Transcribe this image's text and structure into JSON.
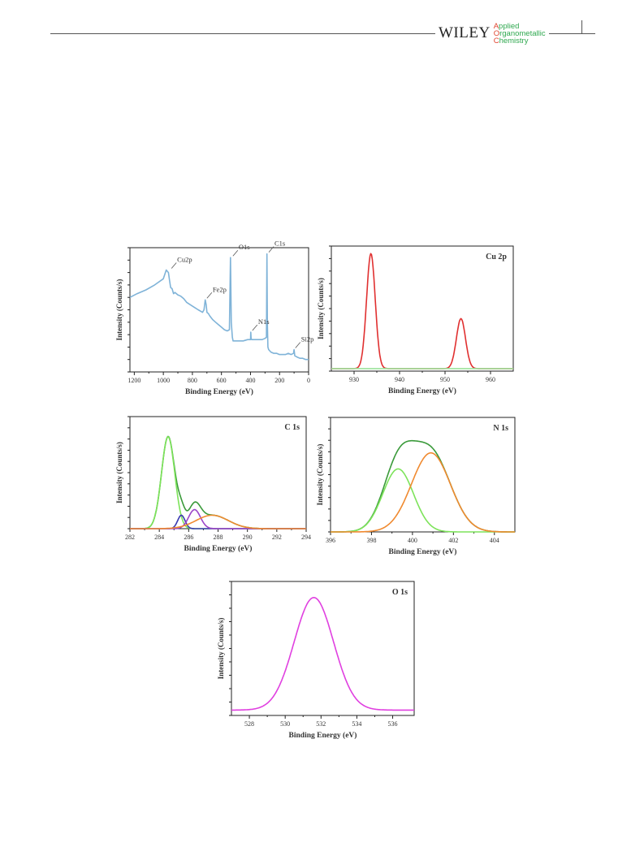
{
  "header": {
    "publisher": "WILEY",
    "journal_lines": [
      {
        "initial": "A",
        "rest": "pplied"
      },
      {
        "initial": "O",
        "rest": "rganometallic"
      },
      {
        "initial": "C",
        "rest": "hemistry"
      }
    ],
    "colors": {
      "journal_text": "#2fa84f",
      "journal_initial": "#e0452f"
    }
  },
  "chart_data": [
    {
      "id": "survey",
      "type": "line",
      "title": "",
      "xlabel": "Binding Energy (eV)",
      "ylabel": "Intensity (Counts/s)",
      "x_reversed": true,
      "xlim": [
        1230,
        0
      ],
      "ylim": [
        0,
        100
      ],
      "xticks": [
        1200,
        1000,
        800,
        600,
        400,
        200,
        0
      ],
      "color": "#7fb3d8",
      "series": [
        {
          "name": "",
          "x": [
            1230,
            1180,
            1120,
            1060,
            1000,
            980,
            965,
            958,
            950,
            940,
            930,
            920,
            900,
            880,
            860,
            840,
            800,
            760,
            730,
            720,
            712,
            705,
            700,
            690,
            680,
            660,
            640,
            620,
            600,
            580,
            560,
            545,
            538,
            532,
            525,
            520,
            500,
            480,
            450,
            420,
            400,
            398,
            396,
            392,
            380,
            350,
            320,
            300,
            290,
            287,
            284,
            280,
            275,
            260,
            240,
            220,
            200,
            180,
            160,
            140,
            120,
            104,
            100,
            95,
            80,
            60,
            40,
            20,
            0
          ],
          "y": [
            60,
            63,
            66,
            70,
            75,
            82,
            80,
            74,
            68,
            67,
            63,
            64,
            62,
            61,
            59,
            56,
            53,
            50,
            48,
            50,
            58,
            54,
            48,
            47,
            45,
            42,
            40,
            38,
            36,
            34,
            33,
            34,
            92,
            40,
            28,
            25,
            25,
            25,
            25,
            26,
            26,
            32,
            27,
            26,
            26,
            26,
            26,
            27,
            28,
            95,
            40,
            20,
            18,
            16,
            15,
            15,
            14,
            14,
            14,
            15,
            14,
            15,
            18,
            13,
            12,
            11,
            11,
            10,
            10
          ]
        }
      ],
      "annotations": [
        {
          "text": "Cu2p",
          "x": 955,
          "y": 82
        },
        {
          "text": "Fe2p",
          "x": 711,
          "y": 58
        },
        {
          "text": "O1s",
          "x": 532,
          "y": 92
        },
        {
          "text": "N1s",
          "x": 398,
          "y": 32
        },
        {
          "text": "C1s",
          "x": 285,
          "y": 95
        },
        {
          "text": "Si2p",
          "x": 102,
          "y": 18
        }
      ]
    },
    {
      "id": "cu2p",
      "type": "line",
      "title": "Cu 2p",
      "xlabel": "Binding Energy (eV)",
      "ylabel": "Intensity (Counts/s)",
      "xlim": [
        925,
        965
      ],
      "ylim": [
        0,
        100
      ],
      "xticks": [
        930,
        940,
        950,
        960
      ],
      "series": [
        {
          "name": "",
          "color": "#e03030",
          "peaks": [
            {
              "center": 933.7,
              "height": 92,
              "width": 0.95
            },
            {
              "center": 953.5,
              "height": 40,
              "width": 1.0
            }
          ],
          "baseline": 2
        },
        {
          "name": "",
          "color": "#9be39b",
          "peaks": [],
          "baseline": 2
        }
      ]
    },
    {
      "id": "c1s",
      "type": "line",
      "title": "C 1s",
      "xlabel": "Binding Energy (eV)",
      "ylabel": "Intensity (Counts/s)",
      "xlim": [
        282,
        294
      ],
      "ylim": [
        0,
        100
      ],
      "xticks": [
        282,
        284,
        286,
        288,
        290,
        292,
        294
      ],
      "series": [
        {
          "name": "",
          "color": "#3a9a3a",
          "peaks": [
            {
              "center": 284.6,
              "height": 82,
              "width": 0.45
            },
            {
              "center": 285.5,
              "height": 12,
              "width": 0.25
            },
            {
              "center": 286.4,
              "height": 17,
              "width": 0.4
            },
            {
              "center": 287.6,
              "height": 12,
              "width": 1.1
            }
          ],
          "baseline": 0
        },
        {
          "name": "",
          "color": "#7de35a",
          "peaks": [
            {
              "center": 284.6,
              "height": 82,
              "width": 0.45
            }
          ],
          "baseline": 0
        },
        {
          "name": "",
          "color": "#3a3ab0",
          "peaks": [
            {
              "center": 285.5,
              "height": 12,
              "width": 0.25
            }
          ],
          "baseline": 0
        },
        {
          "name": "",
          "color": "#9b45c8",
          "peaks": [
            {
              "center": 286.4,
              "height": 17,
              "width": 0.4
            }
          ],
          "baseline": 0
        },
        {
          "name": "",
          "color": "#f08a30",
          "peaks": [
            {
              "center": 287.6,
              "height": 12,
              "width": 1.1
            }
          ],
          "baseline": 0
        }
      ]
    },
    {
      "id": "n1s",
      "type": "line",
      "title": "N 1s",
      "xlabel": "Binding Energy (eV)",
      "ylabel": "Intensity (Counts/s)",
      "xlim": [
        396,
        405
      ],
      "ylim": [
        0,
        100
      ],
      "xticks": [
        396,
        398,
        400,
        402,
        404
      ],
      "series": [
        {
          "name": "",
          "color": "#3a9a3a",
          "peaks": [
            {
              "center": 399.3,
              "height": 55,
              "width": 0.75
            },
            {
              "center": 400.9,
              "height": 69,
              "width": 0.95
            }
          ],
          "baseline": 0
        },
        {
          "name": "",
          "color": "#7de35a",
          "peaks": [
            {
              "center": 399.3,
              "height": 55,
              "width": 0.75
            }
          ],
          "baseline": 0
        },
        {
          "name": "",
          "color": "#f08a30",
          "peaks": [
            {
              "center": 400.9,
              "height": 69,
              "width": 0.95
            }
          ],
          "baseline": 0
        }
      ]
    },
    {
      "id": "o1s",
      "type": "line",
      "title": "O 1s",
      "xlabel": "Binding Energy (eV)",
      "ylabel": "Intensity (Counts/s)",
      "xlim": [
        527,
        537.2
      ],
      "ylim": [
        0,
        100
      ],
      "xticks": [
        528,
        530,
        532,
        534,
        536
      ],
      "series": [
        {
          "name": "",
          "color": "#e040e0",
          "peaks": [
            {
              "center": 531.6,
              "height": 84,
              "width": 1.1
            }
          ],
          "baseline": 4
        }
      ]
    }
  ]
}
